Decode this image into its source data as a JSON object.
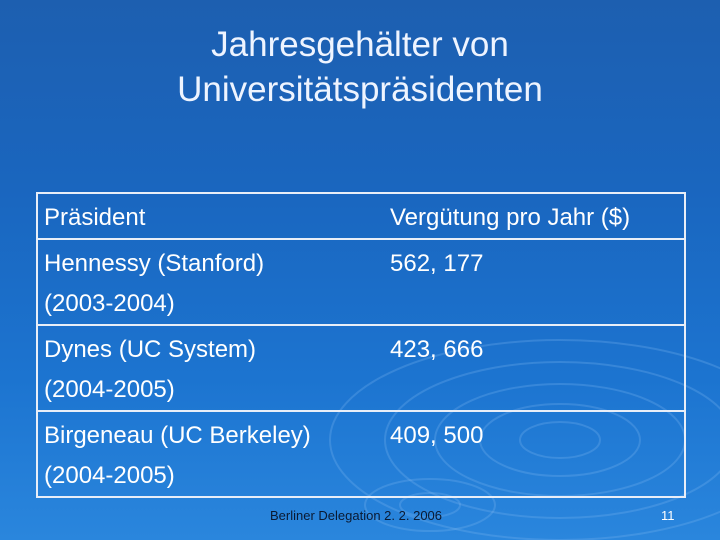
{
  "title": {
    "line1": "Jahresgehälter von",
    "line2": "Universitätspräsidenten"
  },
  "table": {
    "headers": [
      "Präsident",
      "Vergütung pro Jahr ($)"
    ],
    "rows": [
      {
        "name": "Hennessy (Stanford)",
        "period": "(2003-2004)",
        "amount": "562, 177"
      },
      {
        "name": "Dynes (UC System)",
        "period": "(2004-2005)",
        "amount": "423, 666"
      },
      {
        "name": "Birgeneau (UC Berkeley)",
        "period": "(2004-2005)",
        "amount": "409, 500"
      }
    ]
  },
  "footer": {
    "text": "Berliner Delegation 2. 2. 2006",
    "page_number": "11"
  }
}
